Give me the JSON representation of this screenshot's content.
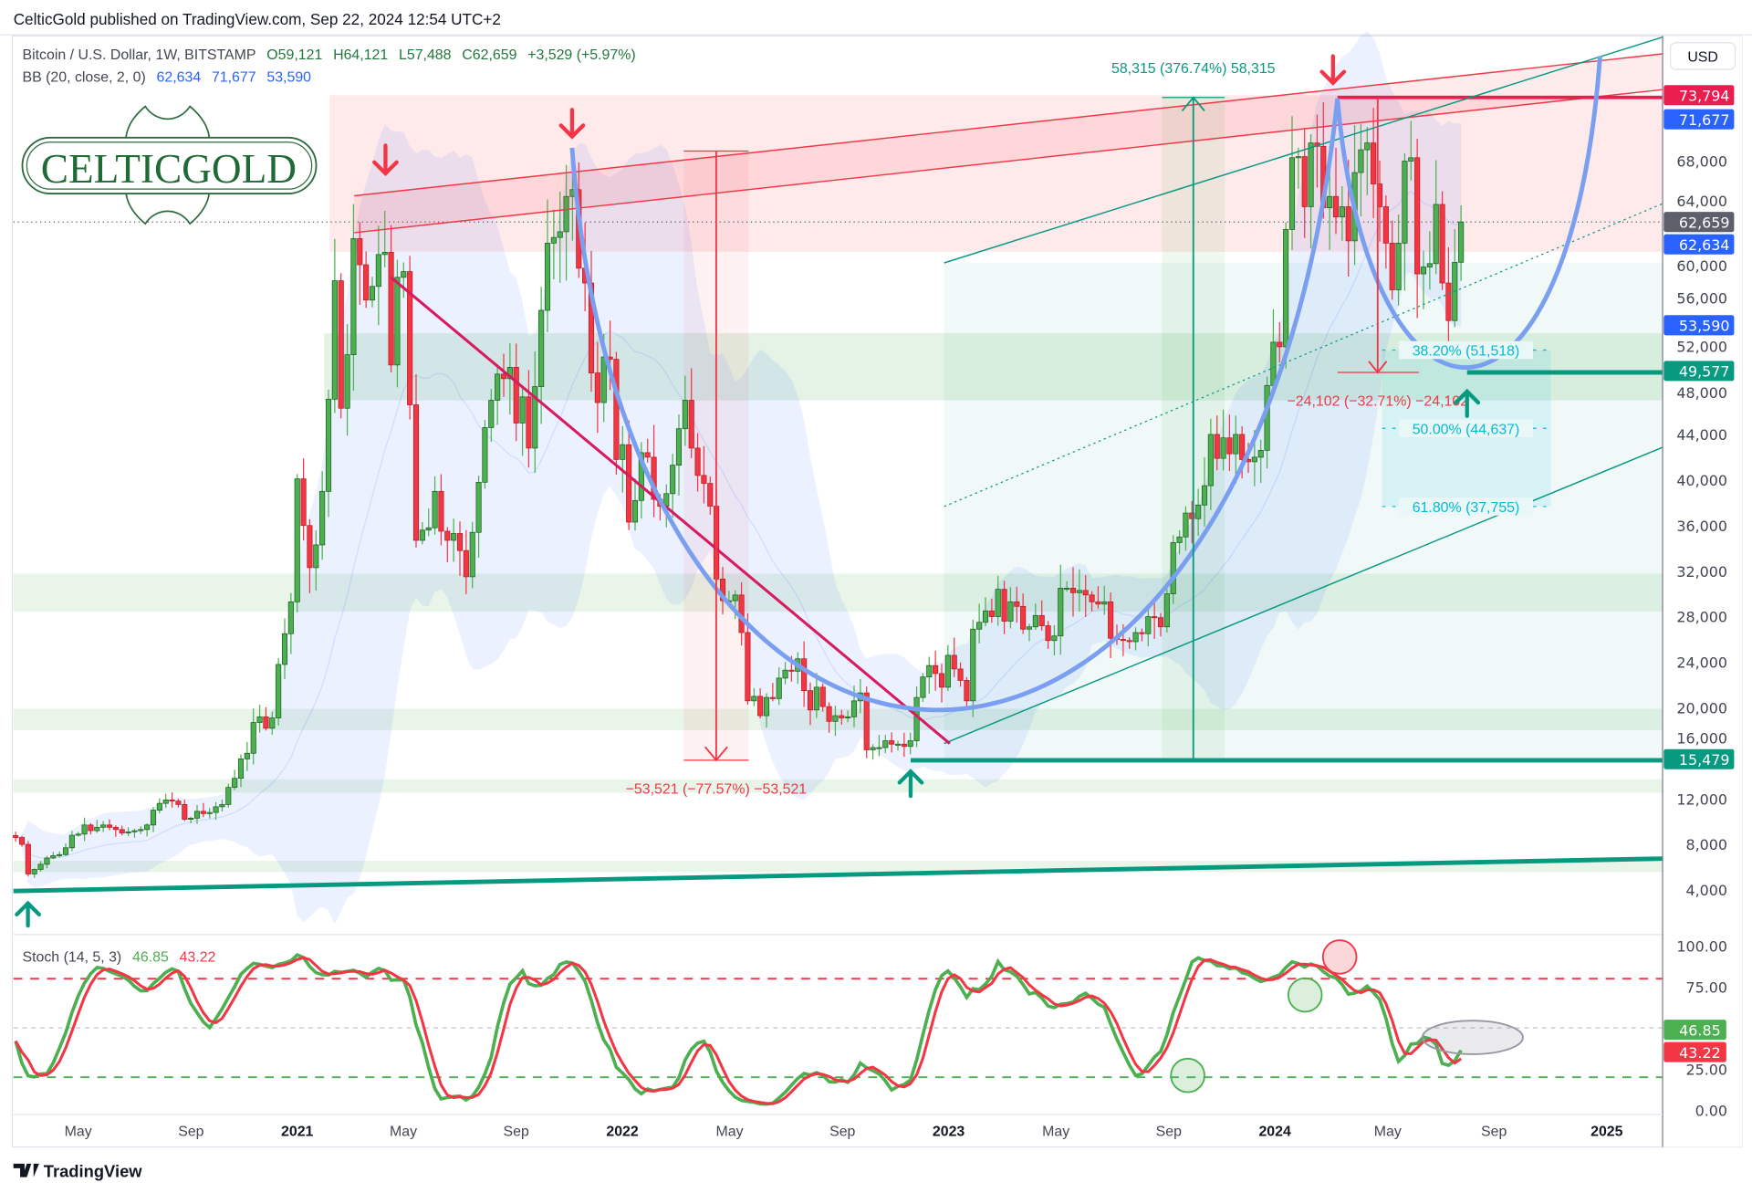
{
  "header": {
    "published": "CelticGold published on TradingView.com, Sep 22, 2024 12:54 UTC+2"
  },
  "legend": {
    "symbol": "Bitcoin / U.S. Dollar, 1W, BITSTAMP",
    "open": "O59,121",
    "high": "H64,121",
    "low": "L57,488",
    "close": "C62,659",
    "change": "+3,529 (+5.97%)",
    "bb_label": "BB (20, close, 2, 0)",
    "bb_basis": "62,634",
    "bb_upper": "71,677",
    "bb_lower": "53,590"
  },
  "stoch_legend": {
    "label": "Stoch (14, 5, 3)",
    "k": "46.85",
    "d": "43.22"
  },
  "logo": {
    "text": "CELTICGOLD"
  },
  "footer": {
    "brand": "TradingView"
  },
  "price_axis": {
    "currency": "USD",
    "ticks": [
      "4,000",
      "8,000",
      "12,000",
      "16,000",
      "20,000",
      "24,000",
      "28,000",
      "32,000",
      "36,000",
      "40,000",
      "44,000",
      "48,000",
      "52,000",
      "56,000",
      "60,000",
      "64,000",
      "68,000"
    ],
    "badges": [
      {
        "label": "73,794",
        "value": 73794,
        "color": "#e91e4f"
      },
      {
        "label": "71,677",
        "value": 71677,
        "color": "#2962ff"
      },
      {
        "label": "62,659",
        "value": 62659,
        "color": "#5d606b"
      },
      {
        "label": "62,634",
        "value": 62634,
        "color": "#2962ff"
      },
      {
        "label": "53,590",
        "value": 53590,
        "color": "#2962ff"
      },
      {
        "label": "49,577",
        "value": 49577,
        "color": "#089981"
      },
      {
        "label": "15,479",
        "value": 15479,
        "color": "#089981"
      }
    ]
  },
  "stoch_axis": {
    "ticks": [
      "100.00",
      "75.00",
      "25.00",
      "0.00"
    ],
    "badges": [
      {
        "label": "46.85",
        "color": "#4caf50"
      },
      {
        "label": "43.22",
        "color": "#f23645"
      }
    ],
    "overbought": 80,
    "oversold": 20
  },
  "time_axis": {
    "labels": [
      {
        "label": "May",
        "year": false
      },
      {
        "label": "Sep",
        "year": false
      },
      {
        "label": "2021",
        "year": true
      },
      {
        "label": "May",
        "year": false
      },
      {
        "label": "Sep",
        "year": false
      },
      {
        "label": "2022",
        "year": true
      },
      {
        "label": "May",
        "year": false
      },
      {
        "label": "Sep",
        "year": false
      },
      {
        "label": "2023",
        "year": true
      },
      {
        "label": "May",
        "year": false
      },
      {
        "label": "Sep",
        "year": false
      },
      {
        "label": "2024",
        "year": true
      },
      {
        "label": "May",
        "year": false
      },
      {
        "label": "Sep",
        "year": false
      },
      {
        "label": "2025",
        "year": true
      }
    ]
  },
  "annotations": {
    "measure_down_1": "−53,521 (−77.57%) −53,521",
    "measure_up": "58,315 (376.74%) 58,315",
    "measure_down_2": "−24,102 (−32.71%) −24,102",
    "fib": [
      {
        "label": "38.20% (51,518)",
        "value": 51518
      },
      {
        "label": "50.00% (44,637)",
        "value": 44637
      },
      {
        "label": "61.80% (37,755)",
        "value": 37755
      }
    ]
  },
  "colors": {
    "up": "#4caf50",
    "down": "#f23645",
    "bb": "#2962ff",
    "stoch_k": "#4caf50",
    "stoch_d": "#f23645",
    "channel": "#089981",
    "resistance": "#f23645"
  },
  "chart_data": {
    "type": "candlestick",
    "symbol": "BTCUSD",
    "interval": "1W",
    "first_week": "Feb 2020",
    "y_scale": "linear",
    "ylim": [
      0,
      76000
    ],
    "closes": [
      8600,
      8000,
      5400,
      5800,
      6250,
      6800,
      7000,
      7100,
      7700,
      8800,
      8900,
      9700,
      9200,
      9500,
      9700,
      9500,
      9300,
      9000,
      9100,
      9200,
      9300,
      9700,
      11000,
      11600,
      11900,
      11800,
      11500,
      10200,
      10300,
      10900,
      10700,
      10800,
      11300,
      11500,
      13000,
      13800,
      15500,
      16000,
      18700,
      19200,
      18200,
      19100,
      23800,
      26500,
      29300,
      40100,
      36000,
      32300,
      34300,
      39000,
      47100,
      57500,
      46300,
      51000,
      61200,
      58900,
      55800,
      57000,
      59800,
      60000,
      50100,
      57800,
      58300,
      46600,
      34700,
      35600,
      35800,
      39000,
      35500,
      34700,
      35300,
      33800,
      31500,
      35400,
      39800,
      44600,
      47000,
      49300,
      48900,
      49900,
      45000,
      47300,
      42800,
      48200,
      54900,
      60800,
      61300,
      61800,
      64900,
      65500,
      58600,
      57300,
      49400,
      46800,
      50800,
      50600,
      41800,
      43100,
      36300,
      38200,
      42400,
      42000,
      38300,
      37700,
      38800,
      41300,
      44500,
      47000,
      42800,
      40400,
      39700,
      37700,
      31300,
      29400,
      29400,
      29900,
      26600,
      20600,
      21000,
      19300,
      20900,
      20800,
      22600,
      23300,
      23200,
      24300,
      21500,
      19800,
      21800,
      20100,
      18800,
      19300,
      19100,
      19200,
      20600,
      21300,
      16300,
      16500,
      16500,
      17100,
      16800,
      16800,
      16600,
      17100,
      20900,
      22700,
      23700,
      23000,
      21800,
      24600,
      23400,
      22400,
      20600,
      26900,
      27500,
      28500,
      28000,
      30400,
      27600,
      29300,
      28900,
      26900,
      27100,
      28100,
      27200,
      25900,
      26300,
      30500,
      30500,
      30100,
      30300,
      29900,
      29300,
      29100,
      29300,
      26100,
      26000,
      25900,
      25800,
      26600,
      26500,
      28000,
      27900,
      27100,
      30000,
      34500,
      35000,
      37100,
      36600,
      37800,
      39500,
      44000,
      41900,
      43700,
      42300,
      44000,
      41800,
      41600,
      42000,
      42600,
      48300,
      52100,
      51700,
      62000,
      68300,
      68400,
      64000,
      69600,
      69300,
      63900,
      64900,
      63100,
      64000,
      61000,
      67000,
      69000,
      69600,
      66000,
      64000,
      60800,
      56700,
      60800,
      68000,
      68300,
      58100,
      58700,
      59000,
      64200,
      57300,
      54000,
      59121,
      62659
    ],
    "last": {
      "open": 59121,
      "high": 64121,
      "low": 57488,
      "close": 62659
    },
    "bollinger": {
      "period": 20,
      "mult": 2,
      "basis": 62634,
      "upper": 71677,
      "lower": 53590
    },
    "stochastic": {
      "k_len": 14,
      "k_smooth": 5,
      "d_smooth": 3,
      "k": 46.85,
      "d": 43.22
    }
  }
}
